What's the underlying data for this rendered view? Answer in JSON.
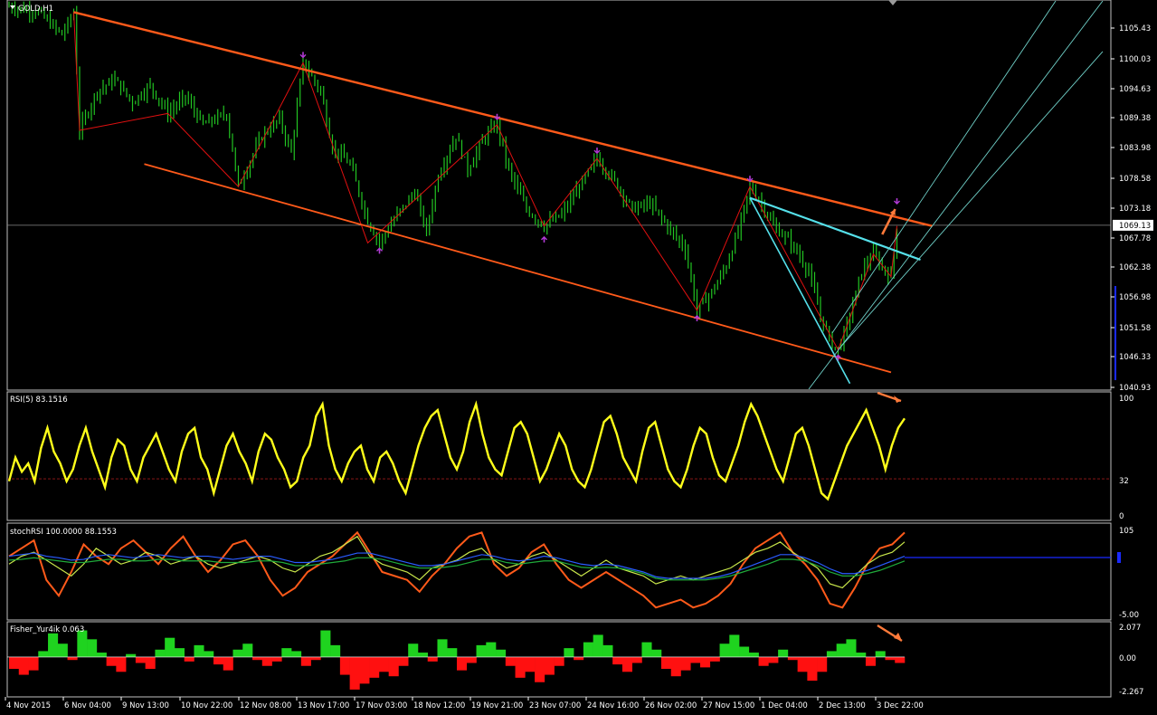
{
  "chart_data": [
    {
      "type": "candlestick",
      "title": "GOLD,H1",
      "current_price": "1069.13",
      "price_ticks": [
        "1105.43",
        "1100.03",
        "1094.63",
        "1089.38",
        "1083.98",
        "1078.58",
        "1073.18",
        "1067.78",
        "1062.38",
        "1056.98",
        "1051.58",
        "1046.33",
        "1040.93"
      ],
      "ylim": [
        1040.0,
        1109.0
      ],
      "x_ticks": [
        "4 Nov 2015",
        "6 Nov 04:00",
        "9 Nov 13:00",
        "10 Nov 22:00",
        "12 Nov 08:00",
        "13 Nov 17:00",
        "17 Nov 03:00",
        "18 Nov 12:00",
        "19 Nov 21:00",
        "23 Nov 07:00",
        "24 Nov 16:00",
        "26 Nov 02:00",
        "27 Nov 15:00",
        "1 Dec 04:00",
        "2 Dec 13:00",
        "3 Dec 22:00"
      ],
      "price_path": [
        [
          0,
          1108
        ],
        [
          5,
          1107
        ],
        [
          9,
          1103
        ],
        [
          11,
          1107
        ],
        [
          12,
          1086
        ],
        [
          15,
          1093
        ],
        [
          18,
          1095
        ],
        [
          21,
          1091
        ],
        [
          24,
          1094
        ],
        [
          27,
          1089
        ],
        [
          30,
          1092
        ],
        [
          33,
          1087
        ],
        [
          37,
          1089
        ],
        [
          39,
          1076
        ],
        [
          43,
          1085
        ],
        [
          46,
          1088
        ],
        [
          48,
          1082
        ],
        [
          50,
          1098
        ],
        [
          53,
          1093
        ],
        [
          55,
          1083
        ],
        [
          58,
          1080
        ],
        [
          61,
          1070
        ],
        [
          63,
          1066
        ],
        [
          66,
          1071
        ],
        [
          69,
          1075
        ],
        [
          71,
          1068
        ],
        [
          73,
          1078
        ],
        [
          76,
          1085
        ],
        [
          78,
          1079
        ],
        [
          81,
          1085
        ],
        [
          83,
          1087
        ],
        [
          85,
          1079
        ],
        [
          88,
          1072
        ],
        [
          91,
          1069
        ],
        [
          94,
          1071
        ],
        [
          97,
          1076
        ],
        [
          100,
          1081
        ],
        [
          103,
          1077
        ],
        [
          106,
          1072
        ],
        [
          109,
          1073
        ],
        [
          112,
          1069
        ],
        [
          115,
          1065
        ],
        [
          117,
          1054
        ],
        [
          120,
          1058
        ],
        [
          122,
          1062
        ],
        [
          124,
          1068
        ],
        [
          126,
          1076
        ],
        [
          128,
          1073
        ],
        [
          130,
          1069
        ],
        [
          133,
          1066
        ],
        [
          136,
          1061
        ],
        [
          138,
          1053
        ],
        [
          140,
          1048
        ],
        [
          141,
          1047
        ],
        [
          143,
          1053
        ],
        [
          145,
          1061
        ],
        [
          147,
          1064
        ],
        [
          149,
          1061
        ],
        [
          150,
          1060
        ],
        [
          151,
          1069
        ]
      ],
      "zigzag": [
        [
          11,
          1107
        ],
        [
          12,
          1086
        ],
        [
          27,
          1089
        ],
        [
          39,
          1076
        ],
        [
          50,
          1098
        ],
        [
          61,
          1066
        ],
        [
          83,
          1087
        ],
        [
          91,
          1069
        ],
        [
          100,
          1081
        ],
        [
          117,
          1054
        ],
        [
          126,
          1076
        ],
        [
          141,
          1047
        ],
        [
          147,
          1064
        ],
        [
          150,
          1060
        ],
        [
          151,
          1069
        ]
      ],
      "markers_down": [
        [
          50,
          1098
        ],
        [
          83,
          1087
        ],
        [
          100,
          1081
        ],
        [
          126,
          1076
        ],
        [
          151,
          1072
        ]
      ],
      "markers_up": [
        [
          63,
          1066
        ],
        [
          91,
          1068
        ],
        [
          117,
          1054
        ],
        [
          141,
          1047
        ]
      ],
      "channel_upper": [
        [
          11,
          1107
        ],
        [
          157,
          1069
        ]
      ],
      "channel_lower": [
        [
          23,
          1080
        ],
        [
          150,
          1043
        ]
      ],
      "trend_cyan_top": [
        [
          126,
          1074
        ],
        [
          155,
          1063
        ]
      ],
      "trend_cyan_steep": [
        [
          126,
          1074
        ],
        [
          143,
          1041
        ]
      ],
      "pitchfork_center": [
        [
          136,
          1040
        ],
        [
          186,
          1109
        ]
      ],
      "pitchfork_upper": [
        [
          140,
          1050
        ],
        [
          178,
          1109
        ]
      ],
      "pitchfork_mid": [
        [
          141,
          1047
        ],
        [
          186,
          1100
        ]
      ]
    },
    {
      "type": "line",
      "title": "RSI(5) 83.1516",
      "y_ticks": [
        "100",
        "32",
        "0"
      ],
      "ylim": [
        0,
        100
      ],
      "level": 32,
      "values": [
        30,
        50,
        38,
        45,
        30,
        58,
        75,
        55,
        45,
        30,
        40,
        60,
        75,
        55,
        40,
        25,
        50,
        65,
        60,
        40,
        30,
        50,
        60,
        70,
        55,
        40,
        30,
        55,
        70,
        75,
        50,
        40,
        20,
        40,
        60,
        70,
        55,
        45,
        30,
        55,
        70,
        65,
        50,
        40,
        25,
        30,
        50,
        60,
        85,
        95,
        60,
        40,
        30,
        45,
        55,
        60,
        40,
        30,
        50,
        55,
        45,
        30,
        20,
        40,
        60,
        75,
        85,
        90,
        70,
        50,
        40,
        55,
        80,
        95,
        70,
        50,
        40,
        35,
        55,
        75,
        80,
        70,
        50,
        30,
        40,
        55,
        70,
        60,
        40,
        30,
        25,
        40,
        60,
        80,
        85,
        70,
        50,
        40,
        30,
        55,
        75,
        80,
        60,
        40,
        30,
        25,
        40,
        60,
        75,
        70,
        50,
        35,
        30,
        45,
        60,
        80,
        95,
        85,
        70,
        55,
        40,
        30,
        50,
        70,
        75,
        60,
        40,
        20,
        15,
        30,
        45,
        60,
        70,
        80,
        90,
        75,
        60,
        40,
        60,
        75,
        83
      ]
    },
    {
      "type": "line",
      "title": "stochRSI 100.0000 88.1553",
      "y_ticks": [
        "105",
        "-5.00"
      ],
      "ylim": [
        -5,
        105
      ],
      "level": 73,
      "series": [
        {
          "color": "#ff5a1a",
          "values": [
            70,
            80,
            90,
            40,
            20,
            50,
            85,
            70,
            60,
            80,
            90,
            75,
            60,
            80,
            95,
            70,
            50,
            65,
            85,
            90,
            70,
            40,
            20,
            30,
            50,
            60,
            70,
            85,
            100,
            75,
            50,
            45,
            40,
            25,
            45,
            60,
            80,
            95,
            100,
            60,
            45,
            55,
            75,
            85,
            60,
            40,
            30,
            40,
            50,
            40,
            30,
            20,
            5,
            10,
            15,
            5,
            10,
            20,
            35,
            60,
            80,
            90,
            100,
            75,
            60,
            40,
            10,
            5,
            30,
            60,
            80,
            85,
            100
          ]
        },
        {
          "color": "#c8e64a",
          "values": [
            60,
            70,
            75,
            65,
            55,
            45,
            60,
            80,
            70,
            60,
            65,
            75,
            70,
            60,
            65,
            70,
            60,
            55,
            60,
            65,
            70,
            65,
            55,
            50,
            60,
            70,
            75,
            85,
            95,
            70,
            60,
            55,
            50,
            40,
            55,
            60,
            65,
            75,
            80,
            65,
            55,
            60,
            70,
            75,
            65,
            55,
            45,
            55,
            65,
            55,
            50,
            45,
            35,
            40,
            45,
            40,
            45,
            50,
            55,
            65,
            75,
            80,
            88,
            75,
            65,
            55,
            35,
            30,
            45,
            60,
            70,
            75,
            88
          ]
        },
        {
          "color": "#2a5cff",
          "values": [
            70,
            72,
            74,
            70,
            68,
            65,
            66,
            70,
            72,
            70,
            68,
            70,
            72,
            70,
            68,
            70,
            70,
            68,
            66,
            68,
            70,
            70,
            66,
            62,
            62,
            64,
            66,
            70,
            74,
            74,
            70,
            66,
            62,
            58,
            58,
            60,
            64,
            68,
            72,
            70,
            66,
            64,
            66,
            70,
            68,
            64,
            60,
            58,
            60,
            58,
            54,
            50,
            44,
            42,
            42,
            42,
            42,
            44,
            48,
            54,
            60,
            66,
            72,
            72,
            68,
            62,
            54,
            48,
            48,
            52,
            58,
            64,
            70
          ]
        },
        {
          "color": "#1faa3a",
          "values": [
            65,
            66,
            68,
            66,
            64,
            62,
            62,
            64,
            66,
            66,
            64,
            64,
            66,
            66,
            64,
            64,
            64,
            62,
            62,
            62,
            64,
            64,
            62,
            58,
            58,
            60,
            62,
            64,
            68,
            68,
            66,
            62,
            58,
            55,
            55,
            56,
            58,
            62,
            66,
            66,
            62,
            60,
            62,
            64,
            64,
            60,
            56,
            55,
            56,
            55,
            52,
            48,
            42,
            40,
            40,
            40,
            40,
            42,
            45,
            50,
            55,
            60,
            66,
            66,
            64,
            58,
            50,
            45,
            45,
            48,
            52,
            58,
            64
          ]
        }
      ]
    },
    {
      "type": "histogram",
      "title": "Fisher_Yur4ik 0.063",
      "y_ticks": [
        "2.077",
        "0.00",
        "-2.267"
      ],
      "ylim": [
        -2.267,
        2.077
      ],
      "values": [
        -0.8,
        -1.2,
        -0.9,
        0.4,
        1.6,
        0.9,
        -0.2,
        1.8,
        1.2,
        0.3,
        -0.6,
        -1.0,
        0.2,
        -0.4,
        -0.8,
        0.5,
        1.3,
        0.6,
        -0.3,
        0.8,
        0.4,
        -0.5,
        -0.9,
        0.5,
        0.9,
        -0.2,
        -0.6,
        -0.3,
        0.6,
        0.4,
        -0.6,
        -0.2,
        1.8,
        0.8,
        -1.2,
        -2.2,
        -1.8,
        -1.4,
        -1.0,
        -1.3,
        -0.6,
        0.9,
        0.3,
        -0.3,
        1.2,
        0.6,
        -0.9,
        -0.4,
        0.8,
        1.0,
        0.5,
        -0.6,
        -1.4,
        -1.0,
        -1.7,
        -1.2,
        -0.6,
        0.6,
        -0.2,
        1.0,
        1.5,
        0.8,
        -0.5,
        -1.0,
        -0.4,
        1.0,
        0.5,
        -0.8,
        -1.3,
        -0.9,
        -0.4,
        -0.7,
        -0.3,
        0.9,
        1.5,
        0.7,
        0.3,
        -0.6,
        -0.4,
        0.5,
        -0.2,
        -1.0,
        -1.6,
        -1.0,
        0.4,
        0.9,
        1.2,
        0.3,
        -0.6,
        0.4,
        -0.2,
        -0.4
      ]
    }
  ]
}
